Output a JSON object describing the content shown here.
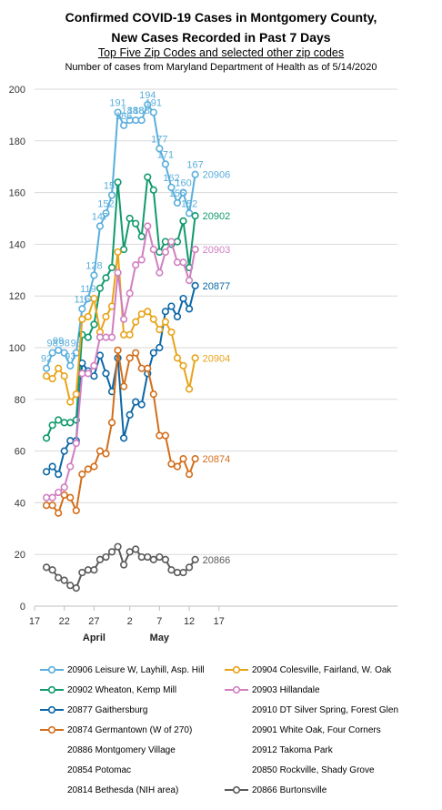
{
  "header": {
    "title_line1": "Confirmed COVID-19 Cases  in Montgomery County,",
    "title_line2": "New Cases  Recorded in Past 7 Days",
    "subtitle": "Top Five Zip Codes and selected other zip codes",
    "source": "Number of cases from Maryland Department of Health as of 5/14/2020"
  },
  "chart_data": {
    "type": "line",
    "title": "Confirmed COVID-19 Cases  in Montgomery County, New Cases  Recorded in Past 7 Days",
    "subtitle": "Top Five Zip Codes and selected other zip codes",
    "xlabel": "",
    "ylabel": "",
    "ylim": [
      0,
      200
    ],
    "yticks": [
      0,
      20,
      40,
      60,
      80,
      100,
      120,
      140,
      160,
      180,
      200
    ],
    "xlim": [
      "2020-03-17",
      "2020-05-17"
    ],
    "xticks": [
      {
        "date": "2020-03-17",
        "label": "17"
      },
      {
        "date": "2020-03-22",
        "label": "22"
      },
      {
        "date": "2020-03-27",
        "label": "27"
      },
      {
        "date": "2020-04-02",
        "label": "2"
      },
      {
        "date": "2020-04-07",
        "label": "7"
      },
      {
        "date": "2020-04-12",
        "label": "12"
      },
      {
        "date": "2020-04-17",
        "label": "17"
      }
    ],
    "month_labels": [
      {
        "date": "2020-03-27",
        "label": "April"
      },
      {
        "date": "2020-04-07",
        "label": "May"
      }
    ],
    "grid": "horizontal",
    "legend": "bottom",
    "x": [
      "2020-03-19",
      "2020-03-20",
      "2020-03-21",
      "2020-03-22",
      "2020-03-23",
      "2020-03-24",
      "2020-03-25",
      "2020-03-26",
      "2020-03-27",
      "2020-03-28",
      "2020-03-29",
      "2020-03-30",
      "2020-03-31",
      "2020-04-01",
      "2020-04-02",
      "2020-04-03",
      "2020-04-04",
      "2020-04-05",
      "2020-04-06",
      "2020-04-07",
      "2020-04-08",
      "2020-04-09",
      "2020-04-10",
      "2020-04-11",
      "2020-04-12",
      "2020-04-13",
      "2020-04-14"
    ],
    "series": [
      {
        "name": "20906 Leisure W, Layhill, Asp. Hill",
        "end_label": "20906",
        "color": "#5aaedc",
        "values": [
          92,
          98,
          99,
          98,
          93,
          98,
          115,
          119,
          128,
          147,
          152,
          159,
          191,
          186,
          188,
          188,
          188,
          194,
          191,
          177,
          171,
          162,
          156,
          160,
          152,
          167,
          null
        ],
        "data_labels": [
          "92",
          "98",
          "99",
          "98",
          "93",
          "98",
          "115",
          "119",
          "128",
          "147",
          "152",
          "159",
          "191",
          "186",
          "188",
          "188",
          "188",
          "194",
          "191",
          "177",
          "171",
          "162",
          "156",
          "160",
          "152",
          "167",
          ""
        ]
      },
      {
        "name": "20902 Wheaton, Kemp Mill",
        "end_label": "20902",
        "color": "#119a6c",
        "values": [
          65,
          70,
          72,
          71,
          71,
          72,
          105,
          104,
          109,
          123,
          127,
          131,
          164,
          138,
          150,
          148,
          143,
          166,
          161,
          137,
          141,
          140,
          141,
          149,
          131,
          151,
          null
        ],
        "data_labels": []
      },
      {
        "name": "20877 Gaithersburg",
        "end_label": "20877",
        "color": "#0b67a6",
        "values": [
          52,
          54,
          51,
          60,
          64,
          64,
          94,
          91,
          89,
          97,
          90,
          83,
          96,
          65,
          74,
          79,
          78,
          90,
          98,
          100,
          114,
          116,
          112,
          119,
          115,
          124,
          null
        ],
        "data_labels": []
      },
      {
        "name": "20874 Germantown (W of 270)",
        "end_label": "20874",
        "color": "#d36e1b",
        "values": [
          39,
          39,
          36,
          43,
          42,
          37,
          51,
          53,
          54,
          60,
          59,
          71,
          99,
          85,
          96,
          98,
          92,
          92,
          82,
          66,
          66,
          55,
          54,
          57,
          51,
          57,
          null
        ],
        "data_labels": []
      },
      {
        "name": "20904 Colesville, Fairland, W. Oak",
        "end_label": "20904",
        "color": "#e9a318",
        "values": [
          89,
          88,
          92,
          89,
          79,
          82,
          111,
          112,
          119,
          106,
          112,
          116,
          137,
          105,
          105,
          110,
          113,
          114,
          111,
          107,
          110,
          106,
          96,
          93,
          84,
          96,
          null
        ],
        "data_labels": []
      },
      {
        "name": "20903 Hillandale",
        "end_label": "20903",
        "color": "#d07fc1",
        "values": [
          42,
          42,
          44,
          46,
          54,
          63,
          90,
          90,
          93,
          104,
          104,
          104,
          129,
          111,
          121,
          132,
          134,
          147,
          138,
          129,
          137,
          141,
          133,
          133,
          126,
          138,
          null
        ],
        "data_labels": []
      },
      {
        "name": "20866 Burtonsville",
        "end_label": "20866",
        "color": "#5a5a5a",
        "values": [
          15,
          14,
          11,
          10,
          8,
          7,
          13,
          14,
          14,
          18,
          19,
          21,
          23,
          16,
          21,
          22,
          19,
          19,
          18,
          19,
          18,
          14,
          13,
          13,
          15,
          18,
          null
        ],
        "data_labels": []
      }
    ]
  },
  "legend": {
    "items": [
      {
        "label": "20906 Leisure W, Layhill, Asp. Hill",
        "color": "#5aaedc",
        "show_marker": true
      },
      {
        "label": "20904 Colesville, Fairland, W. Oak",
        "color": "#e9a318",
        "show_marker": true
      },
      {
        "label": "20902 Wheaton, Kemp Mill",
        "color": "#119a6c",
        "show_marker": true
      },
      {
        "label": "20903 Hillandale",
        "color": "#d07fc1",
        "show_marker": true
      },
      {
        "label": "20877 Gaithersburg",
        "color": "#0b67a6",
        "show_marker": true
      },
      {
        "label": "20910 DT Silver Spring, Forest Glen",
        "color": "#ffffff",
        "show_marker": false
      },
      {
        "label": "20874 Germantown (W of 270)",
        "color": "#d36e1b",
        "show_marker": true
      },
      {
        "label": "20901 White Oak, Four Corners",
        "color": "#ffffff",
        "show_marker": false
      },
      {
        "label": "20886 Montgomery Village",
        "color": "#ffffff",
        "show_marker": false
      },
      {
        "label": "20912 Takoma Park",
        "color": "#ffffff",
        "show_marker": false
      },
      {
        "label": "20854 Potomac",
        "color": "#ffffff",
        "show_marker": false
      },
      {
        "label": "20850 Rockville, Shady Grove",
        "color": "#ffffff",
        "show_marker": false
      },
      {
        "label": "20814 Bethesda (NIH area)",
        "color": "#ffffff",
        "show_marker": false
      },
      {
        "label": "20866 Burtonsville",
        "color": "#5a5a5a",
        "show_marker": true
      }
    ]
  }
}
